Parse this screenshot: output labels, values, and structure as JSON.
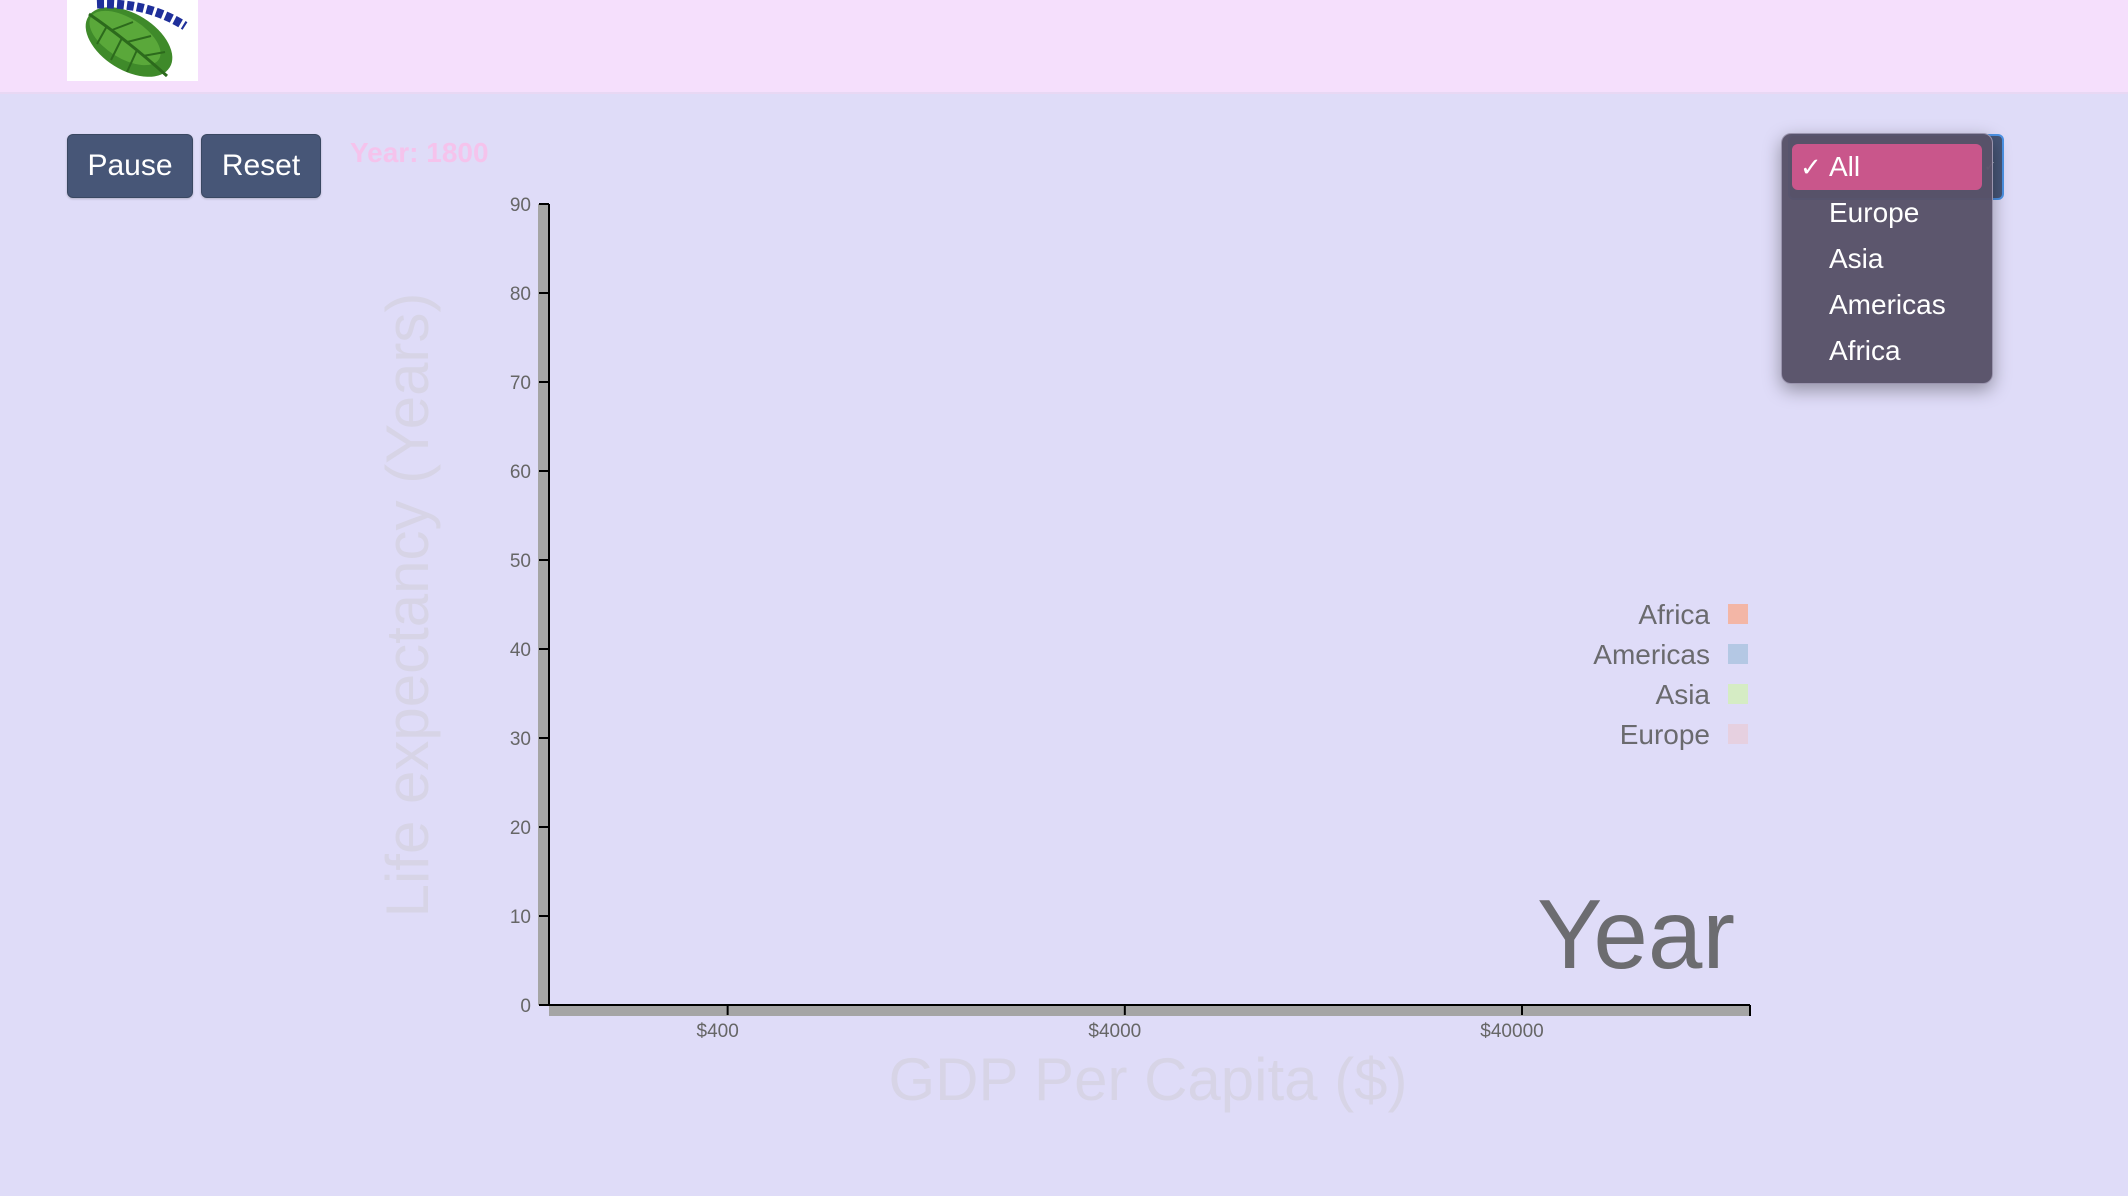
{
  "controls": {
    "pause_label": "Pause",
    "reset_label": "Reset",
    "year_text": "Year: 1800"
  },
  "region_dropdown": {
    "selected": "All",
    "options": [
      "All",
      "Europe",
      "Asia",
      "Americas",
      "Africa"
    ]
  },
  "colors": {
    "page_background": "#dfdcf8",
    "header_background": "#f5dffc",
    "button_background": "#475677",
    "year_label": "#f5c3ec",
    "menu_selected": "#c9568b",
    "Africa": "#f3b6a6",
    "Americas": "#b4c8e4",
    "Asia": "#d5ecc4",
    "Europe": "#e6d0e0"
  },
  "chart_data": {
    "type": "scatter",
    "xlabel": "GDP Per Capita ($)",
    "ylabel": "Life expectancy (Years)",
    "x_scale": "log",
    "xlim": [
      142,
      150000
    ],
    "ylim": [
      0,
      90
    ],
    "x_ticks": [
      400,
      4000,
      40000
    ],
    "x_tick_labels": [
      "$400",
      "$4000",
      "$40000"
    ],
    "y_ticks": [
      0,
      10,
      20,
      30,
      40,
      50,
      60,
      70,
      80,
      90
    ],
    "legend": {
      "placement": "right",
      "entries": [
        "Africa",
        "Americas",
        "Asia",
        "Europe"
      ]
    },
    "background_label": "Year",
    "series": [],
    "grid": false
  }
}
